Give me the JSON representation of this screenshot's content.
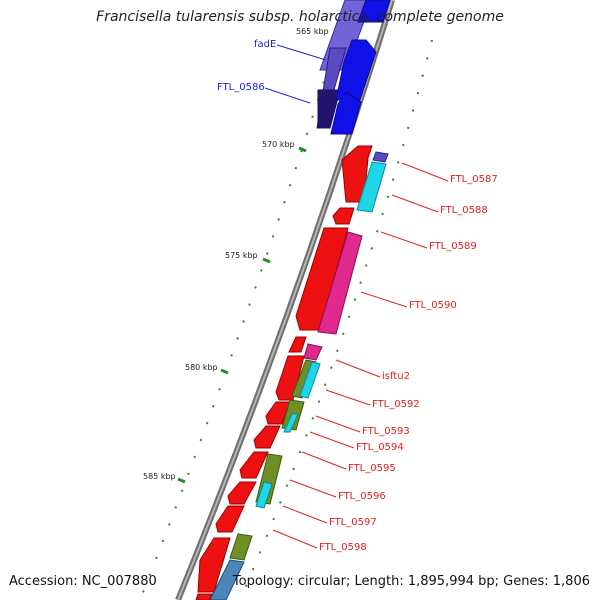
{
  "title": "Francisella tularensis subsp. holarctica, complete genome",
  "accession": "Accession: NC_007880",
  "topology": "Topology: circular; Length: 1,895,994 bp; Genes: 1,806",
  "colors": {
    "backbone": "#888888",
    "tick": "#2b8a2b",
    "label_forward": "#2222cc",
    "label_reverse": "#dd2222",
    "gene_blue": "#1010e8",
    "gene_purple": "#6b55c8",
    "gene_red": "#ee1111",
    "gene_magenta": "#e0288e",
    "gene_cyan": "#1fd6e6",
    "gene_olive": "#6e8f25",
    "gene_steel": "#4a86b8"
  },
  "position_labels": {
    "kbp565": "565 kbp",
    "kbp570": "570 kbp",
    "kbp575": "575 kbp",
    "kbp580": "580 kbp",
    "kbp585": "585 kbp"
  },
  "gene_labels": {
    "fadE": "fadE",
    "ftl0586": "FTL_0586",
    "ftl0587": "FTL_0587",
    "ftl0588": "FTL_0588",
    "ftl0589": "FTL_0589",
    "ftl0590": "FTL_0590",
    "isftu2": "isftu2",
    "ftl0592": "FTL_0592",
    "ftl0593": "FTL_0593",
    "ftl0594": "FTL_0594",
    "ftl0595": "FTL_0595",
    "ftl0596": "FTL_0596",
    "ftl0597": "FTL_0597",
    "ftl0598": "FTL_0598"
  }
}
